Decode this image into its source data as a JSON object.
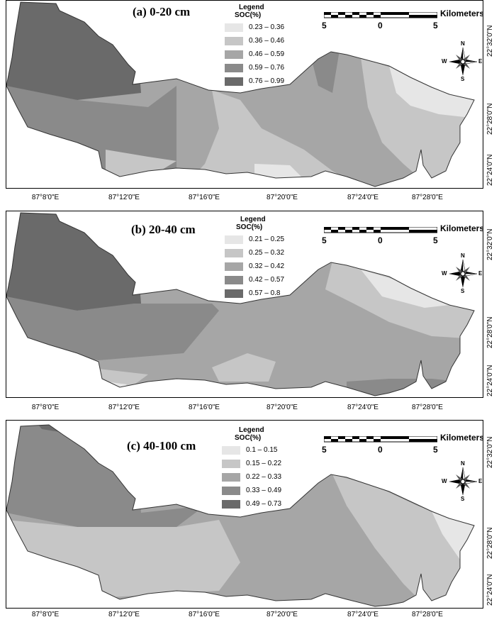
{
  "panels": [
    {
      "title": "(a) 0-20 cm",
      "legend_title": "Legend",
      "legend_subtitle": "SOC(%)",
      "classes": [
        {
          "label": "0.23 – 0.36",
          "color": "#e6e6e6"
        },
        {
          "label": "0.36 – 0.46",
          "color": "#c6c6c6"
        },
        {
          "label": "0.46 – 0.59",
          "color": "#a6a6a6"
        },
        {
          "label": "0.59 – 0.76",
          "color": "#8a8a8a"
        },
        {
          "label": "0.76 – 0.99",
          "color": "#6a6a6a"
        }
      ]
    },
    {
      "title": "(b) 20-40 cm",
      "legend_title": "Legend",
      "legend_subtitle": "SOC(%)",
      "classes": [
        {
          "label": "0.21 – 0.25",
          "color": "#e6e6e6"
        },
        {
          "label": "0.25 – 0.32",
          "color": "#c6c6c6"
        },
        {
          "label": "0.32 – 0.42",
          "color": "#a6a6a6"
        },
        {
          "label": "0.42 – 0.57",
          "color": "#8a8a8a"
        },
        {
          "label": "0.57 – 0.8",
          "color": "#6a6a6a"
        }
      ]
    },
    {
      "title": "(c) 40-100 cm",
      "legend_title": "Legend",
      "legend_subtitle": "SOC(%)",
      "classes": [
        {
          "label": "0.1 – 0.15",
          "color": "#e6e6e6"
        },
        {
          "label": "0.15 – 0.22",
          "color": "#c6c6c6"
        },
        {
          "label": "0.22 – 0.33",
          "color": "#a6a6a6"
        },
        {
          "label": "0.33 – 0.49",
          "color": "#8a8a8a"
        },
        {
          "label": "0.49 – 0.73",
          "color": "#6a6a6a"
        }
      ]
    }
  ],
  "scalebar": {
    "unit": "Kilometers",
    "left": "5",
    "mid": "0",
    "right": "5"
  },
  "compass": {
    "n": "N",
    "s": "S",
    "e": "E",
    "w": "W"
  },
  "x_ticks": [
    "87°8'0\"E",
    "87°12'0\"E",
    "87°16'0\"E",
    "87°20'0\"E",
    "87°24'0\"E",
    "87°28'0\"E"
  ],
  "y_ticks": [
    "22°32'0\"N",
    "22°28'0\"N",
    "22°24'0\"N"
  ],
  "icons": {
    "north_arrow": "compass-rose-icon"
  }
}
